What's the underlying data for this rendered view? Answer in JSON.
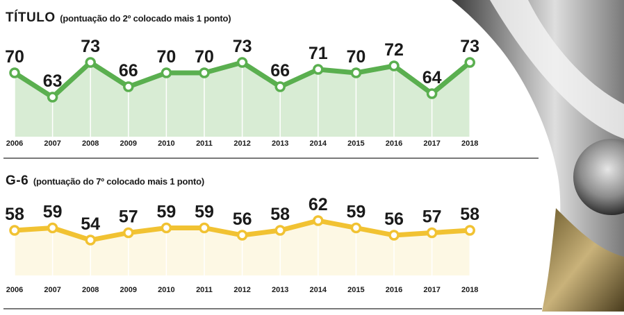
{
  "colors": {
    "green": "#5aaf4f",
    "green_fill": "#d8ecd4",
    "yellow": "#f1c232",
    "yellow_fill": "#fdf8e4",
    "label": "#1a1a1a",
    "grid": "#ffffff",
    "rule": "#4d4d4d"
  },
  "chart_data": [
    {
      "type": "area",
      "title": "TÍTULO",
      "subtitle": "(pontuação do 2º colocado mais 1 ponto)",
      "categories": [
        "2006",
        "2007",
        "2008",
        "2009",
        "2010",
        "2011",
        "2012",
        "2013",
        "2014",
        "2015",
        "2016",
        "2017",
        "2018"
      ],
      "values": [
        70,
        63,
        73,
        66,
        70,
        70,
        73,
        66,
        71,
        70,
        72,
        64,
        73
      ],
      "xlabel": "",
      "ylabel": "",
      "color": "#5aaf4f",
      "fill": "#d8ecd4"
    },
    {
      "type": "area",
      "title": "G-6",
      "subtitle": "(pontuação do 7º colocado mais 1 ponto)",
      "categories": [
        "2006",
        "2007",
        "2008",
        "2009",
        "2010",
        "2011",
        "2012",
        "2013",
        "2014",
        "2015",
        "2016",
        "2017",
        "2018"
      ],
      "values": [
        58,
        59,
        54,
        57,
        59,
        59,
        56,
        58,
        62,
        59,
        56,
        57,
        58
      ],
      "xlabel": "",
      "ylabel": "",
      "color": "#f1c232",
      "fill": "#fdf8e4"
    }
  ]
}
